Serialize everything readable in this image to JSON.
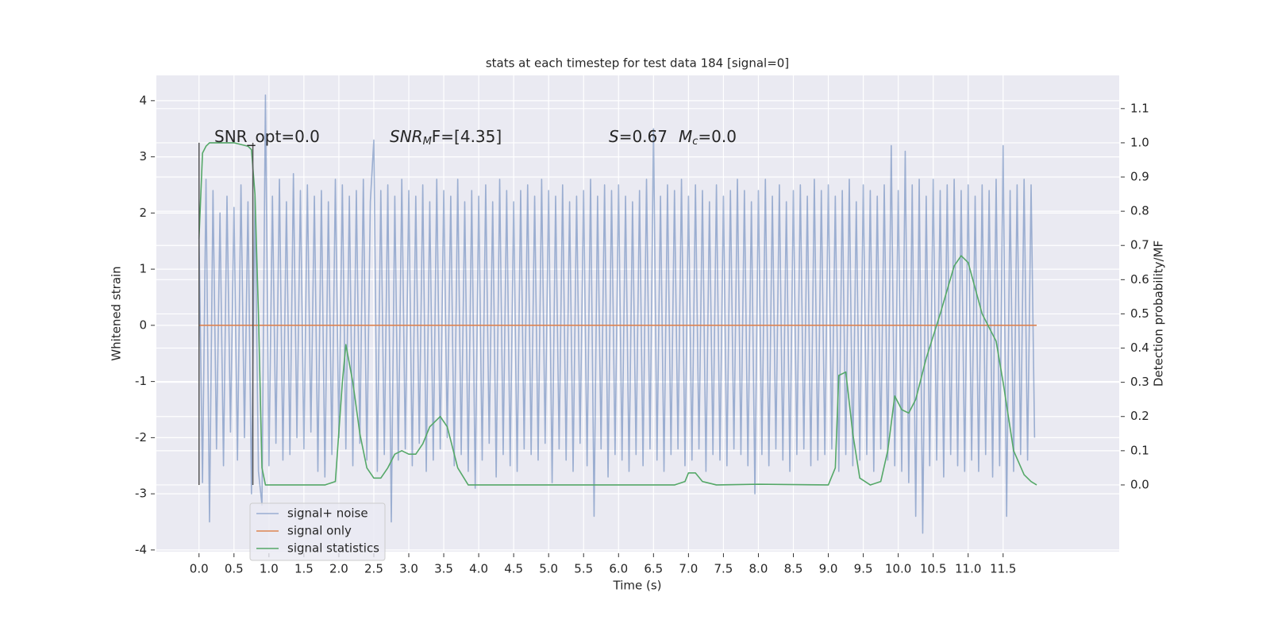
{
  "chart_data": {
    "type": "line",
    "title": "stats at each timestep for test data 184 [signal=0]",
    "x_label": "Time (s)",
    "y_label": "Whitened strain",
    "y2_label": "Detection probability/MF",
    "xlim": [
      -0.61,
      13.16
    ],
    "ylim": [
      -4.03,
      4.45
    ],
    "y2lim": [
      -0.195,
      1.197
    ],
    "xticks": [
      {
        "value": 0,
        "label": "0.0"
      },
      {
        "value": 0.5,
        "label": "0.5"
      },
      {
        "value": 1,
        "label": "1.0"
      },
      {
        "value": 1.5,
        "label": "1.5"
      },
      {
        "value": 2,
        "label": "2.0"
      },
      {
        "value": 2.5,
        "label": "2.5"
      },
      {
        "value": 3,
        "label": "3.0"
      },
      {
        "value": 3.5,
        "label": "3.5"
      },
      {
        "value": 4,
        "label": "4.0"
      },
      {
        "value": 4.5,
        "label": "4.5"
      },
      {
        "value": 5,
        "label": "5.0"
      },
      {
        "value": 5.5,
        "label": "5.5"
      },
      {
        "value": 6,
        "label": "6.0"
      },
      {
        "value": 6.5,
        "label": "6.5"
      },
      {
        "value": 7,
        "label": "7.0"
      },
      {
        "value": 7.5,
        "label": "7.5"
      },
      {
        "value": 8,
        "label": "8.0"
      },
      {
        "value": 8.5,
        "label": "8.5"
      },
      {
        "value": 9,
        "label": "9.0"
      },
      {
        "value": 9.5,
        "label": "9.5"
      },
      {
        "value": 10,
        "label": "10.0"
      },
      {
        "value": 10.5,
        "label": "10.5"
      },
      {
        "value": 11,
        "label": "11.0"
      },
      {
        "value": 11.5,
        "label": "11.5"
      }
    ],
    "yticks": [
      -4,
      -3,
      -2,
      -1,
      0,
      1,
      2,
      3,
      4
    ],
    "y2ticks": [
      {
        "value": 0,
        "label": "0.0"
      },
      {
        "value": 0.1,
        "label": "0.1"
      },
      {
        "value": 0.2,
        "label": "0.2"
      },
      {
        "value": 0.3,
        "label": "0.3"
      },
      {
        "value": 0.4,
        "label": "0.4"
      },
      {
        "value": 0.5,
        "label": "0.5"
      },
      {
        "value": 0.6,
        "label": "0.6"
      },
      {
        "value": 0.7,
        "label": "0.7"
      },
      {
        "value": 0.8,
        "label": "0.8"
      },
      {
        "value": 0.9,
        "label": "0.9"
      },
      {
        "value": 1,
        "label": "1.0"
      },
      {
        "value": 1.1,
        "label": "1.1"
      }
    ],
    "grid": true,
    "legend": "lower left",
    "background": "#eaeaf2",
    "series": [
      {
        "name": "signal+ noise",
        "color": "#4c72b0",
        "alpha": 0.5,
        "x": [
          0,
          0.05,
          0.1,
          0.15,
          0.2,
          0.25,
          0.3,
          0.35,
          0.4,
          0.45,
          0.5,
          0.55,
          0.6,
          0.65,
          0.7,
          0.75,
          0.8,
          0.85,
          0.9,
          0.95,
          1,
          1.05,
          1.1,
          1.15,
          1.2,
          1.25,
          1.3,
          1.35,
          1.4,
          1.45,
          1.5,
          1.55,
          1.6,
          1.65,
          1.7,
          1.75,
          1.8,
          1.85,
          1.9,
          1.95,
          2,
          2.05,
          2.1,
          2.15,
          2.2,
          2.25,
          2.3,
          2.35,
          2.4,
          2.45,
          2.5,
          2.55,
          2.6,
          2.65,
          2.7,
          2.75,
          2.8,
          2.85,
          2.9,
          2.95,
          3,
          3.05,
          3.1,
          3.15,
          3.2,
          3.25,
          3.3,
          3.35,
          3.4,
          3.45,
          3.5,
          3.55,
          3.6,
          3.65,
          3.7,
          3.75,
          3.8,
          3.85,
          3.9,
          3.95,
          4,
          4.05,
          4.1,
          4.15,
          4.2,
          4.25,
          4.3,
          4.35,
          4.4,
          4.45,
          4.5,
          4.55,
          4.6,
          4.65,
          4.7,
          4.75,
          4.8,
          4.85,
          4.9,
          4.95,
          5,
          5.05,
          5.1,
          5.15,
          5.2,
          5.25,
          5.3,
          5.35,
          5.4,
          5.45,
          5.5,
          5.55,
          5.6,
          5.65,
          5.7,
          5.75,
          5.8,
          5.85,
          5.9,
          5.95,
          6,
          6.05,
          6.1,
          6.15,
          6.2,
          6.25,
          6.3,
          6.35,
          6.4,
          6.45,
          6.5,
          6.55,
          6.6,
          6.65,
          6.7,
          6.75,
          6.8,
          6.85,
          6.9,
          6.95,
          7,
          7.05,
          7.1,
          7.15,
          7.2,
          7.25,
          7.3,
          7.35,
          7.4,
          7.45,
          7.5,
          7.55,
          7.6,
          7.65,
          7.7,
          7.75,
          7.8,
          7.85,
          7.9,
          7.95,
          8,
          8.05,
          8.1,
          8.15,
          8.2,
          8.25,
          8.3,
          8.35,
          8.4,
          8.45,
          8.5,
          8.55,
          8.6,
          8.65,
          8.7,
          8.75,
          8.8,
          8.85,
          8.9,
          8.95,
          9,
          9.05,
          9.1,
          9.15,
          9.2,
          9.25,
          9.3,
          9.35,
          9.4,
          9.45,
          9.5,
          9.55,
          9.6,
          9.65,
          9.7,
          9.75,
          9.8,
          9.85,
          9.9,
          9.95,
          10,
          10.05,
          10.1,
          10.15,
          10.2,
          10.25,
          10.3,
          10.35,
          10.4,
          10.45,
          10.5,
          10.55,
          10.6,
          10.65,
          10.7,
          10.75,
          10.8,
          10.85,
          10.9,
          10.95,
          11,
          11.05,
          11.1,
          11.15,
          11.2,
          11.25,
          11.3,
          11.35,
          11.4,
          11.45,
          11.5,
          11.55,
          11.6,
          11.65,
          11.7,
          11.75,
          11.8,
          11.85,
          11.9,
          11.95
        ],
        "values": [
          1.6,
          -2.8,
          2.6,
          -3.5,
          2.4,
          -2.2,
          2.0,
          -2.5,
          2.3,
          -1.9,
          2.1,
          -2.4,
          2.5,
          -2.0,
          2.2,
          -3.0,
          2.3,
          -2.6,
          -3.2,
          4.1,
          -2.5,
          2.3,
          -2.1,
          2.6,
          -2.4,
          2.2,
          -2.3,
          2.7,
          -2.0,
          2.4,
          -2.2,
          2.5,
          -1.9,
          2.3,
          -2.6,
          2.4,
          -2.7,
          2.2,
          -2.3,
          2.6,
          -2.0,
          2.5,
          -2.2,
          2.3,
          -2.5,
          2.4,
          -2.1,
          2.6,
          -2.4,
          2.2,
          3.3,
          -2.6,
          2.4,
          -2.3,
          2.5,
          -3.5,
          2.3,
          -2.4,
          2.6,
          -2.2,
          2.4,
          -2.5,
          2.3,
          -2.1,
          2.5,
          -2.6,
          2.2,
          -2.4,
          2.6,
          -2.2,
          2.4,
          -2.0,
          2.3,
          -2.5,
          2.6,
          -2.3,
          2.2,
          -2.6,
          2.4,
          -2.9,
          2.3,
          -2.4,
          2.5,
          -2.1,
          2.2,
          -2.7,
          2.6,
          -2.3,
          2.4,
          -2.5,
          2.2,
          -2.6,
          2.4,
          -2.2,
          2.5,
          -2.3,
          2.3,
          -2.4,
          2.6,
          -2.1,
          2.4,
          -2.8,
          2.3,
          -2.2,
          2.5,
          -2.4,
          2.2,
          -2.6,
          2.3,
          -2.1,
          2.4,
          -2.5,
          2.6,
          -3.4,
          2.3,
          -2.2,
          2.5,
          -2.7,
          2.4,
          -2.3,
          2.5,
          -2.4,
          2.3,
          -2.6,
          2.2,
          -2.3,
          2.4,
          -2.5,
          2.6,
          -2.2,
          3.5,
          -2.4,
          2.3,
          -2.6,
          2.5,
          -2.3,
          2.4,
          -2.2,
          2.6,
          -2.5,
          2.3,
          -2.4,
          2.5,
          -2.2,
          2.4,
          -2.6,
          2.2,
          -2.3,
          2.5,
          -2.4,
          2.3,
          -2.5,
          2.4,
          -2.2,
          2.6,
          -2.3,
          2.4,
          -2.5,
          2.2,
          -3.0,
          2.4,
          -2.3,
          2.6,
          -2.5,
          2.3,
          -2.2,
          2.5,
          -2.4,
          2.2,
          -2.6,
          2.4,
          -2.3,
          2.5,
          -2.2,
          2.3,
          -2.5,
          2.6,
          -2.4,
          2.4,
          -2.3,
          2.5,
          -2.2,
          2.3,
          -2.6,
          2.4,
          -2.3,
          2.6,
          -2.5,
          2.2,
          -2.4,
          2.5,
          -2.3,
          2.4,
          -2.6,
          2.3,
          -2.2,
          2.5,
          -2.4,
          3.2,
          -2.5,
          2.4,
          -2.6,
          3.1,
          -2.8,
          2.5,
          -3.4,
          2.6,
          -3.7,
          2.3,
          -2.5,
          2.6,
          -2.4,
          2.4,
          -2.7,
          2.5,
          -2.3,
          2.6,
          -2.5,
          2.4,
          -2.6,
          2.5,
          -2.4,
          2.3,
          -2.6,
          2.5,
          -2.3,
          2.4,
          -2.7,
          2.6,
          -2.5,
          3.2,
          -3.4,
          2.4,
          -2.6,
          2.5,
          -2.3,
          2.6,
          -2.4,
          2.5,
          -2.0
        ]
      },
      {
        "name": "signal only",
        "color": "#dd8452",
        "x": [
          0,
          11.98
        ],
        "values": [
          0,
          0
        ]
      },
      {
        "name": "signal statistics",
        "color": "#55a868",
        "axis": "y2",
        "x": [
          0,
          0.05,
          0.1,
          0.15,
          0.2,
          0.3,
          0.5,
          0.7,
          0.75,
          0.8,
          0.85,
          0.9,
          0.95,
          1.0,
          1.5,
          1.8,
          1.95,
          2.05,
          2.1,
          2.2,
          2.3,
          2.4,
          2.5,
          2.6,
          2.7,
          2.8,
          2.9,
          3.0,
          3.1,
          3.2,
          3.3,
          3.45,
          3.55,
          3.7,
          3.85,
          4.0,
          5.0,
          6.0,
          6.8,
          6.95,
          7.0,
          7.1,
          7.2,
          7.4,
          8.0,
          9.0,
          9.1,
          9.15,
          9.25,
          9.35,
          9.45,
          9.6,
          9.75,
          9.85,
          9.95,
          10.05,
          10.15,
          10.25,
          10.4,
          10.6,
          10.8,
          10.9,
          11.0,
          11.2,
          11.4,
          11.5,
          11.65,
          11.8,
          11.9,
          11.98
        ],
        "values": [
          0.72,
          0.97,
          0.99,
          1.0,
          1.0,
          1.0,
          1.0,
          0.99,
          0.98,
          0.85,
          0.5,
          0.05,
          0.0,
          0.0,
          0.0,
          0.0,
          0.01,
          0.3,
          0.41,
          0.3,
          0.15,
          0.05,
          0.02,
          0.02,
          0.05,
          0.09,
          0.1,
          0.09,
          0.09,
          0.12,
          0.17,
          0.2,
          0.17,
          0.05,
          0.0,
          0.0,
          0.0,
          0.0,
          0.0,
          0.01,
          0.035,
          0.035,
          0.01,
          0.0,
          0.002,
          0.0,
          0.05,
          0.32,
          0.33,
          0.15,
          0.02,
          0.0,
          0.01,
          0.1,
          0.26,
          0.22,
          0.21,
          0.25,
          0.37,
          0.5,
          0.64,
          0.67,
          0.65,
          0.5,
          0.42,
          0.3,
          0.1,
          0.03,
          0.01,
          0.0
        ]
      }
    ],
    "vlines": [
      {
        "x": 0,
        "ymin": 0,
        "ymax": 1,
        "axis": "y2",
        "color": "#555555"
      },
      {
        "x": 0.77,
        "ymin": 0,
        "ymax": 1,
        "axis": "y2",
        "color": "#555555"
      }
    ],
    "annotations": [
      {
        "parts": [
          "SNR_opt=0.0"
        ]
      },
      {
        "parts": [
          "SNR",
          "M",
          "F=[4.35]"
        ]
      },
      {
        "parts": [
          "S",
          "=0.67",
          "M",
          "c",
          "=0.0"
        ]
      }
    ]
  }
}
